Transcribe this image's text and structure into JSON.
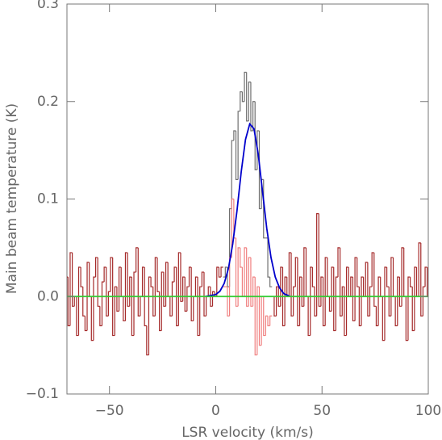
{
  "chart_data": {
    "type": "line",
    "xlabel": "LSR velocity (km/s)",
    "ylabel": "Main beam temperature (K)",
    "xlim": [
      -70,
      100
    ],
    "ylim": [
      -0.1,
      0.3
    ],
    "xticks": [
      {
        "value": -50,
        "label": "−50"
      },
      0,
      50,
      100
    ],
    "yticks": [
      {
        "value": -0.1,
        "label": "−0.1"
      },
      {
        "value": 0,
        "label": "0.0"
      },
      0.1,
      0.2,
      0.3
    ],
    "series": [
      {
        "color": "#a52a2a",
        "drawstyle": "steps-mid",
        "x": [
          -70,
          -69,
          -68,
          -67,
          -66,
          -65,
          -64,
          -63,
          -62,
          -61,
          -60,
          -59,
          -58,
          -57,
          -56,
          -55,
          -54,
          -53,
          -52,
          -51,
          -50,
          -49,
          -48,
          -47,
          -46,
          -45,
          -44,
          -43,
          -42,
          -41,
          -40,
          -39,
          -38,
          -37,
          -36,
          -35,
          -34,
          -33,
          -32,
          -31,
          -30,
          -29,
          -28,
          -27,
          -26,
          -25,
          -24,
          -23,
          -22,
          -21,
          -20,
          -19,
          -18,
          -17,
          -16,
          -15,
          -14,
          -13,
          -12,
          -11,
          -10,
          -9,
          -8,
          -7,
          -6,
          -5,
          -4,
          -3,
          -2,
          -1,
          0,
          1,
          2,
          3
        ],
        "values": [
          0.02,
          -0.03,
          0.045,
          -0.01,
          0.0,
          -0.04,
          0.03,
          0.01,
          -0.02,
          -0.035,
          0.035,
          0.0,
          -0.045,
          0.02,
          0.04,
          -0.01,
          -0.03,
          0.015,
          0.03,
          -0.02,
          0.005,
          0.04,
          -0.04,
          0.01,
          -0.015,
          0.03,
          0.0,
          -0.025,
          0.045,
          -0.01,
          0.02,
          -0.04,
          0.025,
          0.05,
          -0.02,
          0.0,
          0.03,
          -0.03,
          -0.06,
          0.02,
          0.01,
          -0.02,
          0.04,
          0.005,
          -0.035,
          0.025,
          -0.01,
          0.035,
          0.0,
          -0.02,
          0.015,
          0.03,
          -0.03,
          0.045,
          -0.005,
          0.02,
          -0.015,
          0.01,
          0.03,
          -0.025,
          0.0,
          0.02,
          -0.04,
          0.01,
          0.025,
          -0.02,
          0.0,
          0.01,
          -0.01,
          0.005,
          0.0,
          0.03,
          0.02,
          0.03
        ]
      },
      {
        "color": "#707070",
        "drawstyle": "steps-mid",
        "x": [
          4,
          5,
          6,
          7,
          8,
          9,
          10,
          11,
          12,
          13,
          14,
          15,
          16,
          17,
          18,
          19,
          20,
          21,
          22,
          23,
          24,
          25,
          26
        ],
        "values": [
          0.02,
          0.03,
          0.01,
          0.09,
          0.16,
          0.17,
          0.12,
          0.19,
          0.21,
          0.2,
          0.23,
          0.18,
          0.22,
          0.17,
          0.2,
          0.13,
          0.17,
          0.09,
          0.12,
          0.06,
          0.06,
          0.02,
          0.01
        ]
      },
      {
        "color": "#a52a2a",
        "drawstyle": "steps-mid",
        "x": [
          27,
          28,
          29,
          30,
          31,
          32,
          33,
          34,
          35,
          36,
          37,
          38,
          39,
          40,
          41,
          42,
          43,
          44,
          45,
          46,
          47,
          48,
          49,
          50,
          51,
          52,
          53,
          54,
          55,
          56,
          57,
          58,
          59,
          60,
          61,
          62,
          63,
          64,
          65,
          66,
          67,
          68,
          69,
          70,
          71,
          72,
          73,
          74,
          75,
          76,
          77,
          78,
          79,
          80,
          81,
          82,
          83,
          84,
          85,
          86,
          87,
          88,
          89,
          90,
          91,
          92,
          93,
          94,
          95,
          96,
          97,
          98,
          99,
          100
        ],
        "values": [
          0.0,
          -0.02,
          0.01,
          -0.01,
          0.03,
          -0.03,
          0.02,
          0.0,
          0.045,
          -0.02,
          0.01,
          0.04,
          -0.03,
          0.02,
          -0.01,
          0.05,
          0.0,
          -0.04,
          0.03,
          0.01,
          -0.02,
          0.085,
          -0.01,
          0.02,
          -0.03,
          0.04,
          0.0,
          -0.015,
          0.03,
          -0.035,
          0.02,
          0.05,
          -0.02,
          0.01,
          -0.04,
          0.03,
          0.0,
          0.02,
          -0.025,
          0.04,
          0.01,
          -0.03,
          0.02,
          0.0,
          0.035,
          -0.02,
          0.01,
          0.045,
          -0.01,
          -0.03,
          0.02,
          0.0,
          -0.045,
          0.03,
          0.01,
          -0.02,
          0.04,
          0.0,
          -0.03,
          0.02,
          -0.01,
          0.05,
          0.0,
          -0.045,
          0.02,
          0.01,
          -0.035,
          0.03,
          0.0,
          0.055,
          -0.02,
          0.01,
          0.03,
          0.0
        ]
      },
      {
        "color": "#f08080",
        "drawstyle": "steps-mid",
        "x": [
          4,
          5,
          6,
          7,
          8,
          9,
          10,
          11,
          12,
          13,
          14,
          15,
          16,
          17,
          18,
          19,
          20,
          21,
          22,
          23,
          24,
          25,
          26
        ],
        "values": [
          0.01,
          0.01,
          -0.02,
          0.04,
          0.1,
          0.06,
          -0.01,
          0.05,
          0.03,
          0.0,
          0.05,
          -0.01,
          0.04,
          -0.01,
          0.02,
          -0.06,
          0.01,
          -0.05,
          0.0,
          -0.04,
          -0.02,
          -0.03,
          -0.02
        ]
      },
      {
        "color": "#0000cc",
        "x": [
          -5,
          0,
          2,
          4,
          6,
          8,
          10,
          12,
          14,
          16,
          18,
          20,
          22,
          24,
          26,
          28,
          30,
          32,
          35
        ],
        "values": [
          0,
          0.002,
          0.0055,
          0.0135,
          0.029,
          0.054,
          0.088,
          0.128,
          0.161,
          0.177,
          0.172,
          0.146,
          0.108,
          0.07,
          0.04,
          0.02,
          0.009,
          0.003,
          0
        ]
      },
      {
        "color": "#33cc33",
        "x": [
          -70,
          100
        ],
        "values": [
          0,
          0
        ]
      }
    ]
  }
}
